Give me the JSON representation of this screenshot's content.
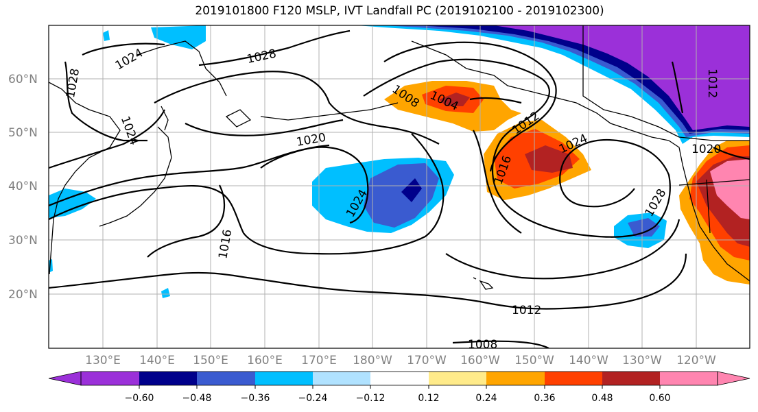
{
  "title": "2019101800 F120 MSLP, IVT Landfall PC (2019102100 - 2019102300)",
  "lat_labels": [
    "60°N",
    "50°N",
    "40°N",
    "30°N",
    "20°N"
  ],
  "lon_labels": [
    "130°E",
    "140°E",
    "150°E",
    "160°E",
    "170°E",
    "180°W",
    "170°W",
    "160°W",
    "150°W",
    "140°W",
    "130°W",
    "120°W"
  ],
  "isobar_labels": [
    "1024",
    "1028",
    "1028",
    "1024",
    "1020",
    "1008",
    "1004",
    "1012",
    "1024",
    "1016",
    "1024",
    "1016",
    "1028",
    "1020",
    "1012",
    "1012",
    "1008"
  ],
  "colorbar": {
    "ticks": [
      "−0.60",
      "−0.48",
      "−0.36",
      "−0.24",
      "−0.12",
      "0.12",
      "0.24",
      "0.36",
      "0.48",
      "0.60"
    ],
    "colors": [
      "#9b30d9",
      "#00008b",
      "#3a5bd0",
      "#00bfff",
      "#b0e2ff",
      "#ffffff",
      "#ffeb8a",
      "#ffa500",
      "#ff4000",
      "#b22222",
      "#ff85b0",
      "#ff85b0"
    ]
  },
  "fill_colors": {
    "purple": "#9b30d9",
    "navy": "#00008b",
    "royal": "#3a5bd0",
    "sky": "#00bfff",
    "light": "#b0e2ff",
    "yellow": "#ffeb8a",
    "orange": "#ffa500",
    "redorange": "#ff4000",
    "darkred": "#b22222",
    "pink": "#ff85b0"
  }
}
